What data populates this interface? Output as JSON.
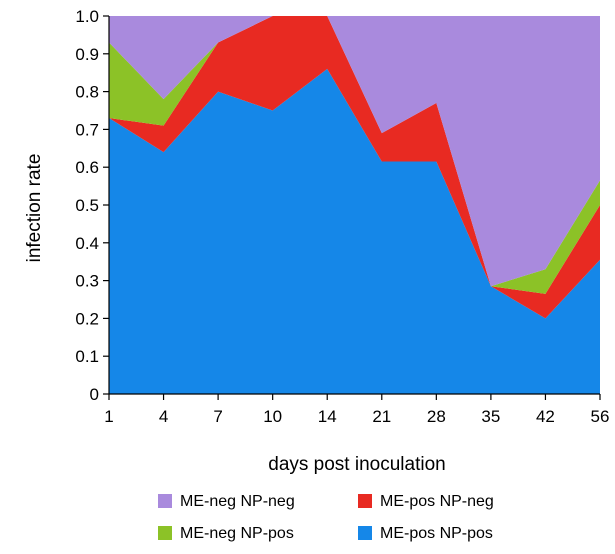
{
  "chart_data": {
    "type": "area",
    "stacked": true,
    "title": "",
    "xlabel": "days post inoculation",
    "ylabel": "infection rate",
    "x": [
      "1",
      "4",
      "7",
      "10",
      "14",
      "21",
      "28",
      "35",
      "42",
      "56"
    ],
    "ylim": [
      0,
      1.0
    ],
    "yticks": [
      "0",
      "0.1",
      "0.2",
      "0.3",
      "0.4",
      "0.5",
      "0.6",
      "0.7",
      "0.8",
      "0.9",
      "1.0"
    ],
    "grid": false,
    "legend_position": "bottom",
    "series": [
      {
        "name": "ME-pos NP-pos",
        "color": "#1587e8",
        "values": [
          0.73,
          0.64,
          0.8,
          0.75,
          0.86,
          0.615,
          0.615,
          0.285,
          0.2,
          0.355
        ]
      },
      {
        "name": "ME-pos NP-neg",
        "color": "#e82a22",
        "values": [
          0.0,
          0.07,
          0.13,
          0.25,
          0.14,
          0.075,
          0.155,
          0.0,
          0.065,
          0.145
        ]
      },
      {
        "name": "ME-neg NP-pos",
        "color": "#8cc227",
        "values": [
          0.2,
          0.07,
          0.0,
          0.0,
          0.0,
          0.0,
          0.0,
          0.0,
          0.065,
          0.065
        ]
      },
      {
        "name": "ME-neg NP-neg",
        "color": "#a98add",
        "values": [
          0.07,
          0.22,
          0.07,
          0.0,
          0.0,
          0.31,
          0.23,
          0.715,
          0.67,
          0.435
        ]
      }
    ],
    "legend_order": [
      "ME-neg NP-neg",
      "ME-pos NP-neg",
      "ME-neg NP-pos",
      "ME-pos NP-pos"
    ]
  }
}
